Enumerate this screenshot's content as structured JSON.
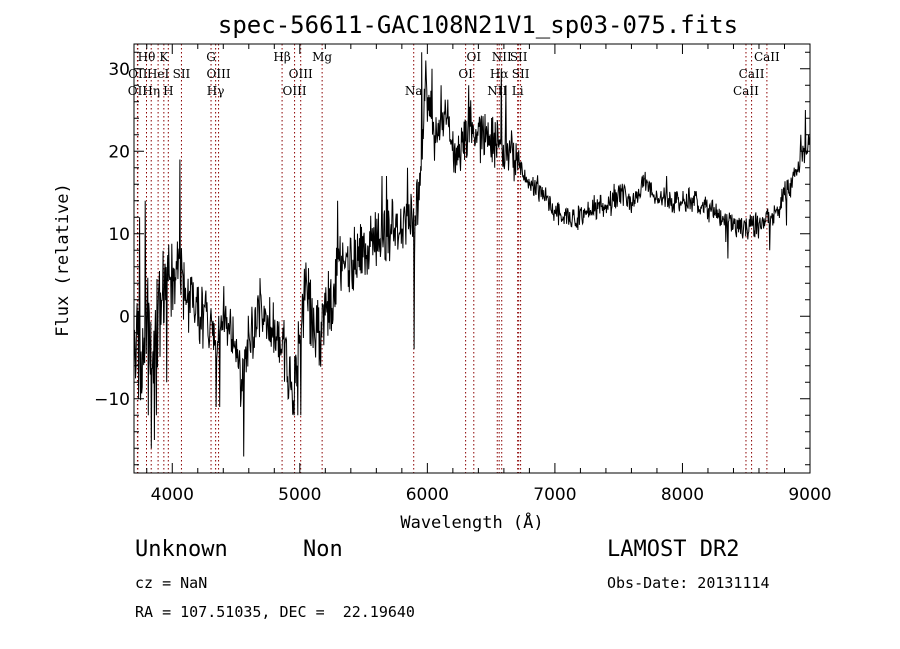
{
  "chart_data": {
    "type": "line",
    "title": "spec-56611-GAC108N21V1_sp03-075.fits",
    "xlabel": "Wavelength (Å)",
    "ylabel": "Flux (relative)",
    "xlim": [
      3700,
      9000
    ],
    "ylim": [
      -19,
      33
    ],
    "xticks": [
      4000,
      5000,
      6000,
      7000,
      8000,
      9000
    ],
    "yticks": [
      -10,
      0,
      10,
      20,
      30
    ],
    "line_color": "#000000",
    "marker_color": "#8b0000",
    "spectral_lines": [
      {
        "label": "Hθ",
        "x": 3798,
        "row": 0
      },
      {
        "label": "OII",
        "x": 3727,
        "row": 2
      },
      {
        "label": "OII",
        "x": 3730,
        "row": 1
      },
      {
        "label": "Hη",
        "x": 3835,
        "row": 2
      },
      {
        "label": "HeI",
        "x": 3889,
        "row": 1
      },
      {
        "label": "K",
        "x": 3934,
        "row": 0
      },
      {
        "label": "SII",
        "x": 4072,
        "row": 1
      },
      {
        "label": "H",
        "x": 3969,
        "row": 2
      },
      {
        "label": "G",
        "x": 4304,
        "row": 0
      },
      {
        "label": "OIII",
        "x": 4363,
        "row": 1
      },
      {
        "label": "Hγ",
        "x": 4340,
        "row": 2
      },
      {
        "label": "Hβ",
        "x": 4861,
        "row": 0
      },
      {
        "label": "OIII",
        "x": 5007,
        "row": 1
      },
      {
        "label": "OIII",
        "x": 4959,
        "row": 2
      },
      {
        "label": "Mg",
        "x": 5175,
        "row": 0
      },
      {
        "label": "Na",
        "x": 5893,
        "row": 2
      },
      {
        "label": "OI",
        "x": 6364,
        "row": 0
      },
      {
        "label": "OI",
        "x": 6300,
        "row": 1
      },
      {
        "label": "NII",
        "x": 6583,
        "row": 0
      },
      {
        "label": "SII",
        "x": 6716,
        "row": 0
      },
      {
        "label": "Hα",
        "x": 6563,
        "row": 1
      },
      {
        "label": "SII",
        "x": 6731,
        "row": 1
      },
      {
        "label": "NII",
        "x": 6548,
        "row": 2
      },
      {
        "label": "Li",
        "x": 6708,
        "row": 2
      },
      {
        "label": "CaII",
        "x": 8662,
        "row": 0
      },
      {
        "label": "CaII",
        "x": 8542,
        "row": 1
      },
      {
        "label": "CaII",
        "x": 8498,
        "row": 2
      }
    ],
    "anchors": [
      [
        3700,
        -5
      ],
      [
        3730,
        2
      ],
      [
        3760,
        -6
      ],
      [
        3800,
        0
      ],
      [
        3850,
        -5
      ],
      [
        3880,
        0
      ],
      [
        3920,
        3
      ],
      [
        3960,
        5
      ],
      [
        4000,
        4
      ],
      [
        4050,
        6
      ],
      [
        4100,
        3
      ],
      [
        4150,
        2
      ],
      [
        4200,
        1
      ],
      [
        4250,
        0
      ],
      [
        4300,
        -1
      ],
      [
        4350,
        -4
      ],
      [
        4400,
        1
      ],
      [
        4450,
        -1
      ],
      [
        4500,
        -3
      ],
      [
        4550,
        -9
      ],
      [
        4600,
        -3
      ],
      [
        4650,
        -1
      ],
      [
        4700,
        2
      ],
      [
        4750,
        0
      ],
      [
        4800,
        -2
      ],
      [
        4850,
        -3
      ],
      [
        4900,
        -5
      ],
      [
        4950,
        -10
      ],
      [
        4980,
        -5
      ],
      [
        5000,
        -2
      ],
      [
        5050,
        4
      ],
      [
        5100,
        -1
      ],
      [
        5150,
        -3
      ],
      [
        5200,
        0
      ],
      [
        5250,
        2
      ],
      [
        5300,
        6
      ],
      [
        5400,
        6
      ],
      [
        5500,
        8
      ],
      [
        5600,
        10
      ],
      [
        5700,
        10
      ],
      [
        5800,
        11
      ],
      [
        5880,
        13
      ],
      [
        5900,
        10
      ],
      [
        5950,
        18
      ],
      [
        5980,
        28
      ],
      [
        6000,
        26
      ],
      [
        6050,
        22
      ],
      [
        6100,
        23
      ],
      [
        6150,
        24
      ],
      [
        6200,
        21
      ],
      [
        6250,
        20
      ],
      [
        6300,
        21
      ],
      [
        6350,
        24
      ],
      [
        6400,
        22
      ],
      [
        6500,
        21
      ],
      [
        6600,
        20
      ],
      [
        6700,
        19
      ],
      [
        6800,
        16
      ],
      [
        6900,
        15
      ],
      [
        7000,
        13
      ],
      [
        7100,
        12
      ],
      [
        7200,
        12
      ],
      [
        7300,
        13
      ],
      [
        7400,
        13
      ],
      [
        7500,
        15
      ],
      [
        7600,
        14
      ],
      [
        7700,
        16
      ],
      [
        7800,
        15
      ],
      [
        7900,
        14
      ],
      [
        8000,
        14
      ],
      [
        8100,
        14
      ],
      [
        8200,
        13
      ],
      [
        8300,
        12
      ],
      [
        8400,
        11
      ],
      [
        8500,
        11
      ],
      [
        8600,
        11
      ],
      [
        8700,
        12
      ],
      [
        8750,
        13
      ],
      [
        8800,
        15
      ],
      [
        8850,
        16
      ],
      [
        8900,
        18
      ],
      [
        8950,
        20
      ],
      [
        9000,
        21
      ]
    ],
    "noise": [
      [
        3700,
        4000,
        5
      ],
      [
        4000,
        5000,
        3
      ],
      [
        5000,
        5900,
        3.2
      ],
      [
        5900,
        6700,
        2.5
      ],
      [
        6700,
        9000,
        1.2
      ]
    ],
    "spikes": [
      [
        3735,
        -10
      ],
      [
        3745,
        12
      ],
      [
        3790,
        14
      ],
      [
        3812,
        -12
      ],
      [
        3838,
        -16
      ],
      [
        3862,
        -15
      ],
      [
        3875,
        -12
      ],
      [
        3955,
        -8
      ],
      [
        4062,
        19
      ],
      [
        4130,
        -2
      ],
      [
        4345,
        -11
      ],
      [
        4372,
        -11
      ],
      [
        4560,
        -17
      ],
      [
        4910,
        -10
      ],
      [
        4955,
        -12
      ],
      [
        4985,
        -12
      ],
      [
        5010,
        -12
      ],
      [
        5125,
        -5
      ],
      [
        5295,
        14
      ],
      [
        5645,
        17
      ],
      [
        5680,
        17
      ],
      [
        5845,
        18
      ],
      [
        5898,
        -4
      ],
      [
        5955,
        32
      ],
      [
        5990,
        31
      ],
      [
        6035,
        30
      ],
      [
        6110,
        28
      ],
      [
        6325,
        28
      ],
      [
        6580,
        30
      ],
      [
        6618,
        28
      ],
      [
        7875,
        17
      ],
      [
        8340,
        9
      ],
      [
        8355,
        7
      ],
      [
        8470,
        10
      ],
      [
        8685,
        8
      ],
      [
        8815,
        11
      ],
      [
        8930,
        22
      ],
      [
        8965,
        25
      ]
    ]
  },
  "info": {
    "object_class": "Unknown",
    "object_subclass": "Non",
    "survey": "LAMOST DR2",
    "cz": "cz = NaN",
    "obs_date": "Obs-Date: 20131114",
    "coords": "RA = 107.51035, DEC =  22.19640"
  }
}
